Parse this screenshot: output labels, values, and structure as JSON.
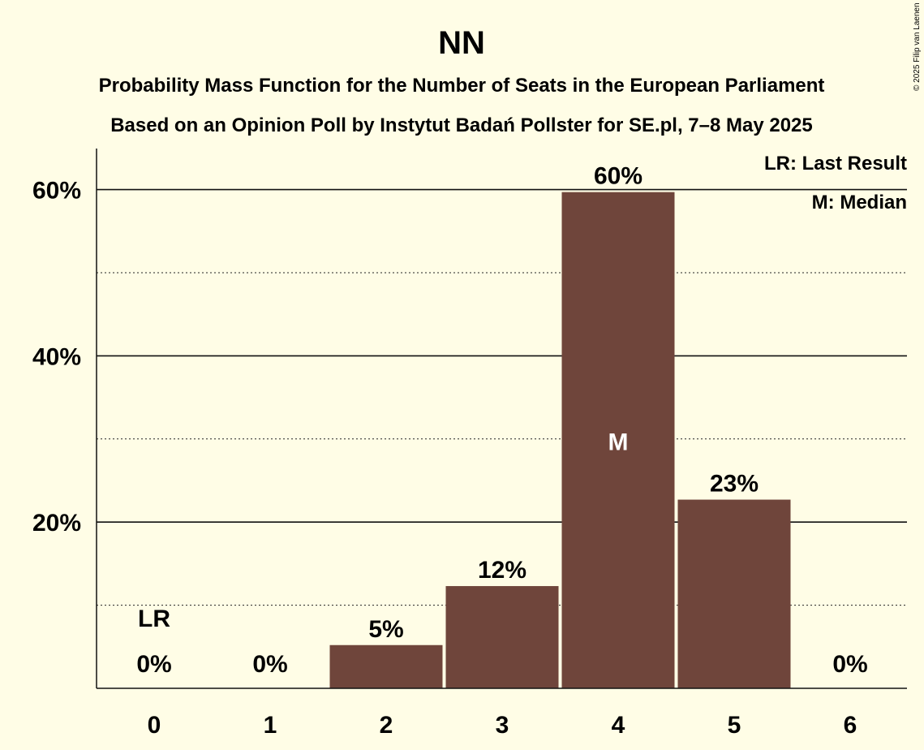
{
  "chart_data": {
    "type": "bar",
    "title": "NN",
    "subtitle_lines": [
      "Probability Mass Function for the Number of Seats in the European Parliament",
      "Based on an Opinion Poll by Instytut Badań Pollster for SE.pl, 7–8 May 2025"
    ],
    "categories": [
      "0",
      "1",
      "2",
      "3",
      "4",
      "5",
      "6"
    ],
    "values": [
      0,
      0,
      5.2,
      12.3,
      59.7,
      22.7,
      0
    ],
    "value_labels": [
      "0%",
      "0%",
      "5%",
      "12%",
      "60%",
      "23%",
      "0%"
    ],
    "ylim": [
      0,
      65
    ],
    "yticks_major": [
      20,
      40,
      60
    ],
    "ytick_labels": [
      "20%",
      "40%",
      "60%"
    ],
    "yticks_minor": [
      10,
      30,
      50
    ],
    "xlabel": "",
    "ylabel": "",
    "last_result_index": 0,
    "last_result_marker": "LR",
    "median_index": 4,
    "median_marker": "M",
    "legend": [
      "LR: Last Result",
      "M: Median"
    ],
    "legend_position": "top-right",
    "bar_color": "#6F453B",
    "background_color": "#FFFDE6",
    "copyright": "© 2025 Filip van Laenen"
  }
}
